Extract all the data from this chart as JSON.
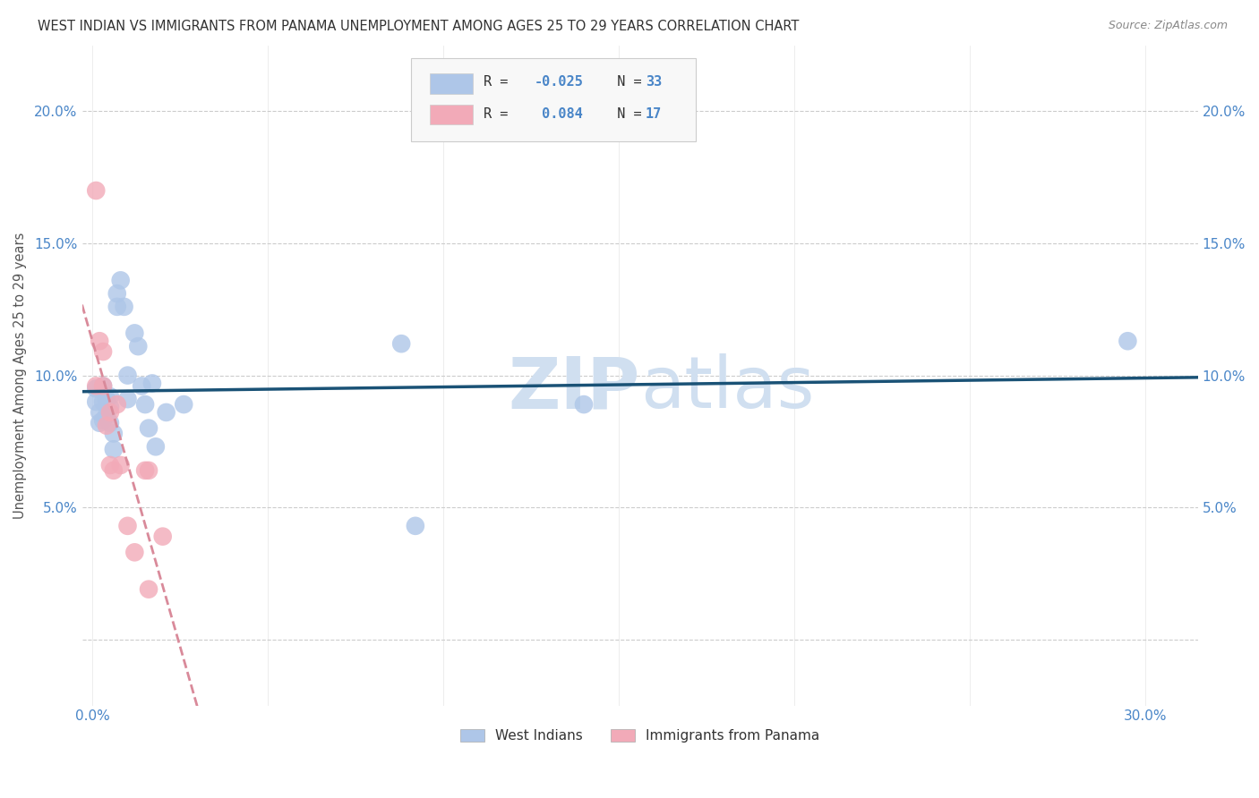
{
  "title": "WEST INDIAN VS IMMIGRANTS FROM PANAMA UNEMPLOYMENT AMONG AGES 25 TO 29 YEARS CORRELATION CHART",
  "source": "Source: ZipAtlas.com",
  "ylabel": "Unemployment Among Ages 25 to 29 years",
  "xlim": [
    -0.003,
    0.315
  ],
  "ylim": [
    -0.025,
    0.225
  ],
  "xticks": [
    0.0,
    0.05,
    0.1,
    0.15,
    0.2,
    0.25,
    0.3
  ],
  "xtick_labels_show": [
    "0.0%",
    "",
    "",
    "",
    "",
    "",
    "30.0%"
  ],
  "yticks": [
    0.0,
    0.05,
    0.1,
    0.15,
    0.2
  ],
  "ytick_labels": [
    "",
    "5.0%",
    "10.0%",
    "15.0%",
    "20.0%"
  ],
  "west_indians_x": [
    0.001,
    0.001,
    0.002,
    0.002,
    0.003,
    0.003,
    0.003,
    0.004,
    0.004,
    0.005,
    0.005,
    0.005,
    0.006,
    0.006,
    0.007,
    0.007,
    0.008,
    0.009,
    0.01,
    0.01,
    0.012,
    0.013,
    0.014,
    0.015,
    0.016,
    0.017,
    0.018,
    0.021,
    0.026,
    0.088,
    0.092,
    0.14,
    0.295
  ],
  "west_indians_y": [
    0.095,
    0.09,
    0.086,
    0.082,
    0.083,
    0.09,
    0.096,
    0.085,
    0.091,
    0.092,
    0.088,
    0.082,
    0.078,
    0.072,
    0.126,
    0.131,
    0.136,
    0.126,
    0.1,
    0.091,
    0.116,
    0.111,
    0.096,
    0.089,
    0.08,
    0.097,
    0.073,
    0.086,
    0.089,
    0.112,
    0.043,
    0.089,
    0.113
  ],
  "panama_x": [
    0.001,
    0.001,
    0.002,
    0.003,
    0.003,
    0.004,
    0.005,
    0.005,
    0.006,
    0.007,
    0.008,
    0.01,
    0.012,
    0.015,
    0.016,
    0.016,
    0.02
  ],
  "panama_y": [
    0.17,
    0.096,
    0.113,
    0.109,
    0.096,
    0.081,
    0.086,
    0.066,
    0.064,
    0.089,
    0.066,
    0.043,
    0.033,
    0.064,
    0.019,
    0.064,
    0.039
  ],
  "blue_line_color": "#1a5276",
  "pink_line_color": "#d98a9a",
  "blue_scatter_color": "#aec6e8",
  "pink_scatter_color": "#f2aab8",
  "background_color": "#ffffff",
  "grid_color": "#cccccc",
  "watermark_color": "#d0dff0",
  "title_color": "#333333",
  "axis_label_color": "#555555",
  "tick_color": "#4a86c8",
  "source_color": "#888888",
  "legend_box_color": "#f8f8f8",
  "legend_border_color": "#cccccc",
  "legend_text_color": "#333333",
  "legend_value_color": "#4a86c8"
}
